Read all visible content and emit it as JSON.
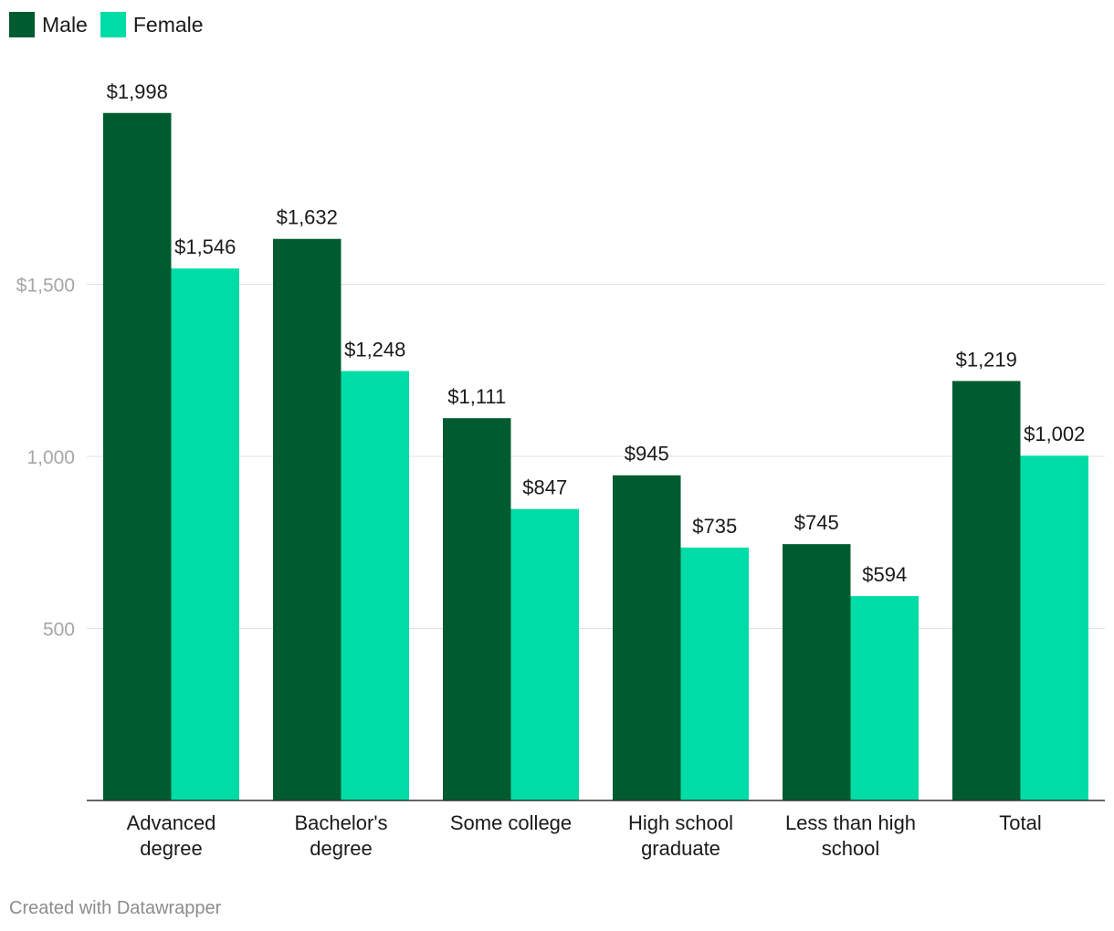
{
  "legend": {
    "male": {
      "label": "Male",
      "color": "#005c30"
    },
    "female": {
      "label": "Female",
      "color": "#00dca6"
    }
  },
  "credit": "Created with Datawrapper",
  "chart_data": {
    "type": "bar",
    "title": "",
    "xlabel": "",
    "ylabel": "",
    "ylim": [
      0,
      2100
    ],
    "grid": true,
    "legend_position": "top-left",
    "yticks": [
      {
        "value": 500,
        "label": "500"
      },
      {
        "value": 1000,
        "label": "1,000"
      },
      {
        "value": 1500,
        "label": "$1,500"
      }
    ],
    "categories": [
      [
        "Advanced",
        "degree"
      ],
      [
        "Bachelor's",
        "degree"
      ],
      [
        "Some college"
      ],
      [
        "High school",
        "graduate"
      ],
      [
        "Less than high",
        "school"
      ],
      [
        "Total"
      ]
    ],
    "series": [
      {
        "name": "Male",
        "color": "#005c30",
        "values": [
          1998,
          1632,
          1111,
          945,
          745,
          1219
        ],
        "labels": [
          "$1,998",
          "$1,632",
          "$1,111",
          "$945",
          "$745",
          "$1,219"
        ]
      },
      {
        "name": "Female",
        "color": "#00dca6",
        "values": [
          1546,
          1248,
          847,
          735,
          594,
          1002
        ],
        "labels": [
          "$1,546",
          "$1,248",
          "$847",
          "$735",
          "$594",
          "$1,002"
        ]
      }
    ]
  }
}
